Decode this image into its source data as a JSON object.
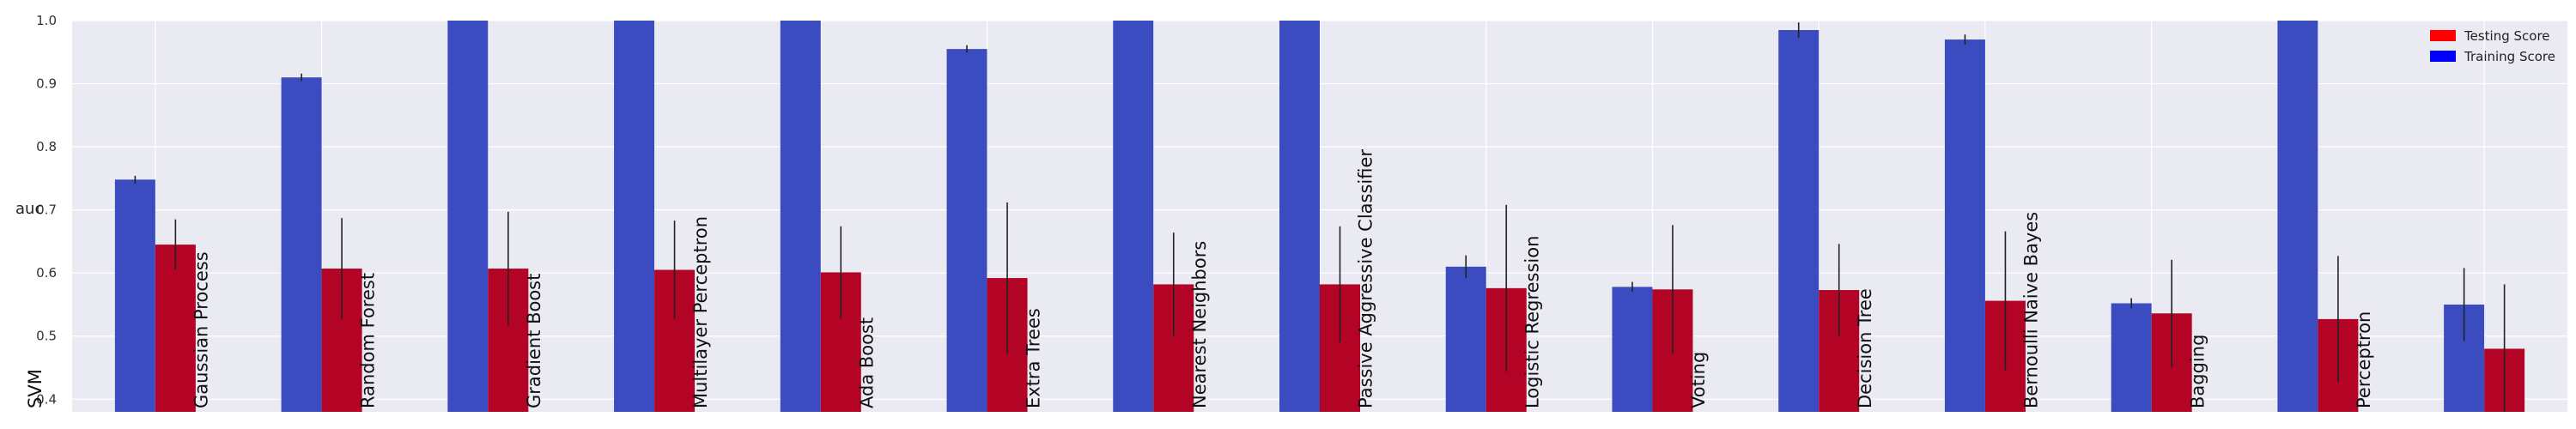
{
  "chart_data": {
    "type": "bar",
    "ylabel": "auc",
    "ylim": [
      0.38,
      1.0
    ],
    "yticks": [
      "0.4",
      "0.5",
      "0.6",
      "0.7",
      "0.8",
      "0.9",
      "1.0"
    ],
    "grid": true,
    "legend_position": "top-right",
    "categories": [
      "SVM",
      "Gaussian Process",
      "Random Forest",
      "Gradient Boost",
      "Multilayer Perceptron",
      "Ada Boost",
      "Extra Trees",
      "Nearest Neighbors",
      "Passive Aggressive Classifier",
      "Logistic Regression",
      "Voting",
      "Decision Tree",
      "Bernoulli Naive Bayes",
      "Bagging",
      "Perceptron"
    ],
    "series": [
      {
        "name": "Training Score",
        "color": "#3b4cc0",
        "values": [
          0.748,
          0.91,
          1.0,
          1.0,
          1.0,
          0.955,
          1.0,
          1.0,
          0.61,
          0.578,
          0.985,
          0.97,
          0.552,
          1.0,
          0.55
        ],
        "error": [
          0.006,
          0.006,
          0.0,
          0.0,
          0.0,
          0.006,
          0.0,
          0.0,
          0.018,
          0.008,
          0.012,
          0.008,
          0.008,
          0.0,
          0.058
        ]
      },
      {
        "name": "Testing Score",
        "color": "#b40426",
        "values": [
          0.645,
          0.607,
          0.607,
          0.605,
          0.601,
          0.592,
          0.582,
          0.582,
          0.576,
          0.574,
          0.573,
          0.556,
          0.536,
          0.527,
          0.48
        ],
        "error": [
          0.04,
          0.08,
          0.09,
          0.078,
          0.073,
          0.12,
          0.082,
          0.092,
          0.132,
          0.102,
          0.073,
          0.11,
          0.085,
          0.1,
          0.102
        ]
      }
    ],
    "legend": [
      "Testing Score",
      "Training Score"
    ]
  }
}
